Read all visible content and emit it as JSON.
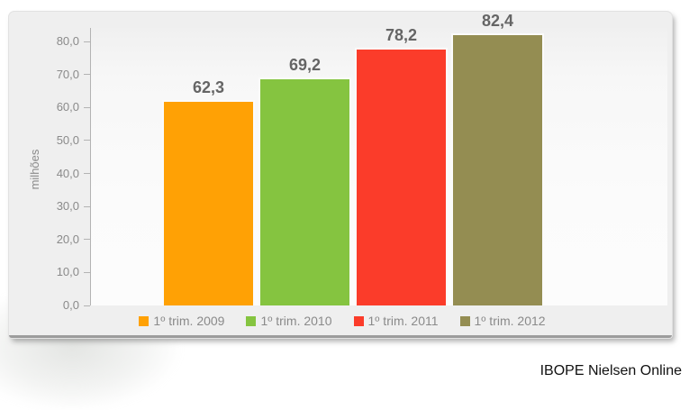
{
  "page": {
    "source_credit": "IBOPE Nielsen Online"
  },
  "chart_data": {
    "type": "bar",
    "title": "",
    "ylabel": "milhões",
    "ylim": [
      0,
      80
    ],
    "y_tick_step": 10,
    "y_tick_labels": [
      "0,0",
      "10,0",
      "20,0",
      "30,0",
      "40,0",
      "50,0",
      "60,0",
      "70,0",
      "80,0"
    ],
    "categories": [
      "1º trim. 2009",
      "1º trim. 2010",
      "1º trim. 2011",
      "1º trim. 2012"
    ],
    "values": [
      62.3,
      69.2,
      78.2,
      82.4
    ],
    "value_labels": [
      "62,3",
      "69,2",
      "78,2",
      "82,4"
    ],
    "bar_colors": [
      "#ffa105",
      "#85c440",
      "#fb3c2a",
      "#948d52"
    ],
    "grid": false,
    "legend_position": "bottom"
  }
}
